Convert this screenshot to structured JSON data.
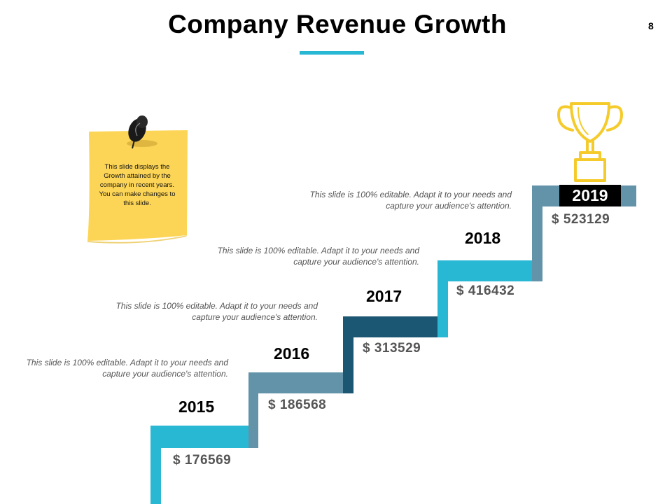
{
  "header": {
    "title": "Company Revenue Growth",
    "page_number": "8"
  },
  "note": {
    "text": "This slide displays the Growth attained by the company in recent years. You can make changes to this slide."
  },
  "colors": {
    "accent": "#29b8d4",
    "slate": "#6293a8",
    "navy": "#1b5672",
    "note_yellow": "#fdd556",
    "trophy_gold": "#f5cb2c"
  },
  "steps": [
    {
      "year": "2015",
      "value": "$ 176569",
      "description": "This slide is 100% editable. Adapt it to your needs and capture your audience's attention."
    },
    {
      "year": "2016",
      "value": "$ 186568",
      "description": "This slide is 100% editable. Adapt it to your needs and capture your audience's attention."
    },
    {
      "year": "2017",
      "value": "$ 313529",
      "description": "This slide is 100% editable. Adapt it to your needs and capture your audience's attention."
    },
    {
      "year": "2018",
      "value": "$ 416432",
      "description": "This slide is 100% editable. Adapt it to your needs and capture your audience's attention."
    },
    {
      "year": "2019",
      "value": "$ 523129",
      "description": ""
    }
  ],
  "icons": {
    "pin": "pushpin-icon",
    "trophy": "trophy-icon"
  }
}
